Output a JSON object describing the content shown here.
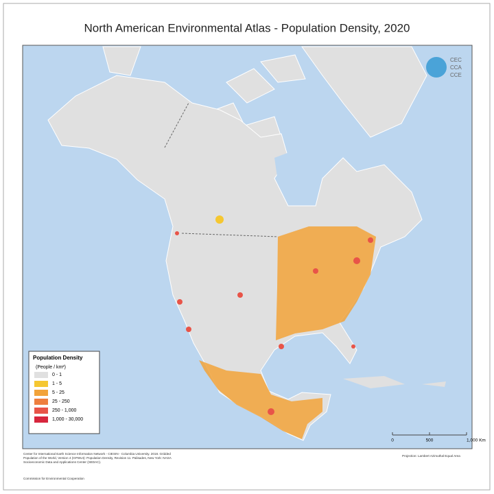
{
  "header": {
    "title": "North American Environmental Atlas - Population Density, 2020"
  },
  "logo": {
    "lines": [
      "CEC",
      "CCA",
      "CCE"
    ]
  },
  "legend": {
    "title": "Population Density",
    "unit": "(People / km²)",
    "items": [
      {
        "label": "0 - 1",
        "color": "#e0e0e0"
      },
      {
        "label": "1 - 5",
        "color": "#f5c731"
      },
      {
        "label": "5 - 25",
        "color": "#f2a33a"
      },
      {
        "label": "25 - 250",
        "color": "#ee7f3f"
      },
      {
        "label": "250 - 1,000",
        "color": "#e85448"
      },
      {
        "label": "1,000 - 30,000",
        "color": "#d7263d"
      }
    ]
  },
  "scale_bar": {
    "labels": [
      "0",
      "500",
      "1,000 Km"
    ]
  },
  "footer": {
    "source": "Center for International Earth Science Information Network - CIESIN - Columbia University. 2018. Gridded Population of the World, Version 4 (GPWv4): Population Density, Revision 11. Palisades, New York: NASA Socioeconomic Data and Applications Center (SEDAC).",
    "publisher": "Commission for Environmental Cooperation",
    "projection": "Projection: Lambert Azimuthal Equal Area"
  }
}
